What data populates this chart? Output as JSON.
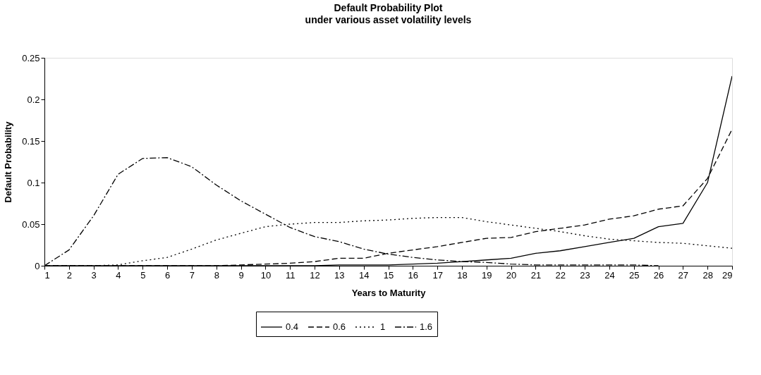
{
  "chart_data": {
    "type": "line",
    "title": "Default Probability Plot",
    "subtitle": "under various asset volatility levels",
    "xlabel": "Years to Maturity",
    "ylabel": "Default Probability",
    "x": [
      1,
      2,
      3,
      4,
      5,
      6,
      7,
      8,
      9,
      10,
      11,
      12,
      13,
      14,
      15,
      16,
      17,
      18,
      19,
      20,
      21,
      22,
      23,
      24,
      25,
      26,
      27,
      28,
      29
    ],
    "xlim": [
      1,
      29
    ],
    "xticks": [
      1,
      2,
      3,
      4,
      5,
      6,
      7,
      8,
      9,
      10,
      11,
      12,
      13,
      14,
      15,
      16,
      17,
      18,
      19,
      20,
      21,
      22,
      23,
      24,
      25,
      26,
      27,
      28,
      29
    ],
    "ylim": [
      0,
      0.25
    ],
    "yticks": [
      0,
      0.05,
      0.1,
      0.15,
      0.2,
      0.25
    ],
    "series": [
      {
        "name": "0.4",
        "color": "#000000",
        "line_style": "solid",
        "values": [
          0,
          0,
          0,
          0,
          0,
          0,
          0,
          0,
          0,
          0,
          0,
          0,
          0.001,
          0.001,
          0.001,
          0.002,
          0.003,
          0.005,
          0.007,
          0.009,
          0.015,
          0.018,
          0.023,
          0.028,
          0.033,
          0.047,
          0.051,
          0.1,
          0.228
        ]
      },
      {
        "name": "0.6",
        "color": "#000000",
        "line_style": "dashed",
        "values": [
          0,
          0,
          0,
          0,
          0,
          0,
          0,
          0,
          0.001,
          0.002,
          0.003,
          0.005,
          0.009,
          0.009,
          0.015,
          0.019,
          0.023,
          0.028,
          0.033,
          0.034,
          0.041,
          0.045,
          0.049,
          0.056,
          0.06,
          0.068,
          0.072,
          0.105,
          0.164
        ]
      },
      {
        "name": "1",
        "color": "#000000",
        "line_style": "dotted",
        "values": [
          0,
          0,
          0,
          0.001,
          0.006,
          0.01,
          0.02,
          0.031,
          0.039,
          0.047,
          0.05,
          0.052,
          0.052,
          0.054,
          0.055,
          0.057,
          0.058,
          0.058,
          0.053,
          0.049,
          0.045,
          0.041,
          0.036,
          0.032,
          0.03,
          0.028,
          0.027,
          0.024,
          0.021
        ]
      },
      {
        "name": "1.6",
        "color": "#000000",
        "line_style": "dashdot",
        "values": [
          0,
          0.019,
          0.06,
          0.11,
          0.129,
          0.13,
          0.119,
          0.097,
          0.078,
          0.062,
          0.046,
          0.035,
          0.029,
          0.02,
          0.014,
          0.01,
          0.007,
          0.005,
          0.004,
          0.002,
          0.001,
          0.001,
          0.001,
          0.001,
          0.001,
          0,
          null,
          null,
          null
        ]
      }
    ],
    "grid": false,
    "legend": "bottom"
  }
}
